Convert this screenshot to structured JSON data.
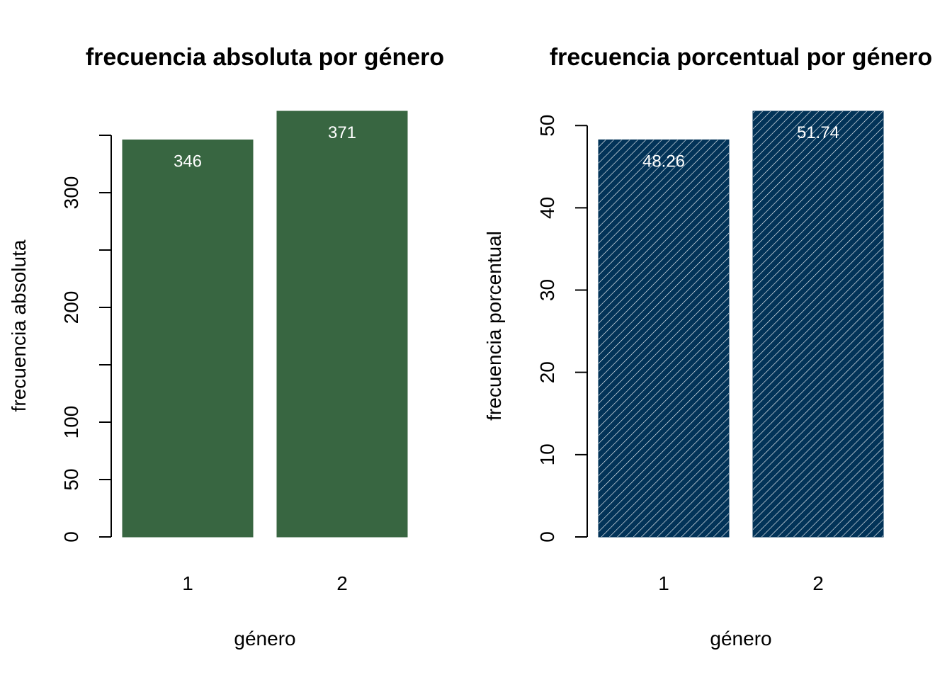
{
  "chart_data": [
    {
      "type": "bar",
      "title": "frecuencia absoluta por género",
      "xlabel": "género",
      "ylabel": "frecuencia absoluta",
      "categories": [
        "1",
        "2"
      ],
      "values": [
        346,
        371
      ],
      "value_labels": [
        "346",
        "371"
      ],
      "ylim": [
        0,
        371
      ],
      "yticks": [
        0,
        50,
        100,
        150,
        200,
        250,
        300,
        350
      ],
      "ytick_labels": [
        "0",
        "50",
        "100",
        "",
        "200",
        "",
        "300",
        ""
      ],
      "bar_color": "#386641",
      "fill_pattern": "solid",
      "grid": false,
      "legend": "none"
    },
    {
      "type": "bar",
      "title": "frecuencia porcentual por género",
      "xlabel": "género",
      "ylabel": "frecuencia porcentual",
      "categories": [
        "1",
        "2"
      ],
      "values": [
        48.26,
        51.74
      ],
      "value_labels": [
        "48.26",
        "51.74"
      ],
      "ylim": [
        0,
        51.74
      ],
      "yticks": [
        0,
        10,
        20,
        30,
        40,
        50
      ],
      "ytick_labels": [
        "0",
        "10",
        "20",
        "30",
        "40",
        "50"
      ],
      "bar_color": "#023358",
      "fill_pattern": "diagonal-hatch",
      "hatch_color": "#ffffff",
      "grid": false,
      "legend": "none"
    }
  ]
}
